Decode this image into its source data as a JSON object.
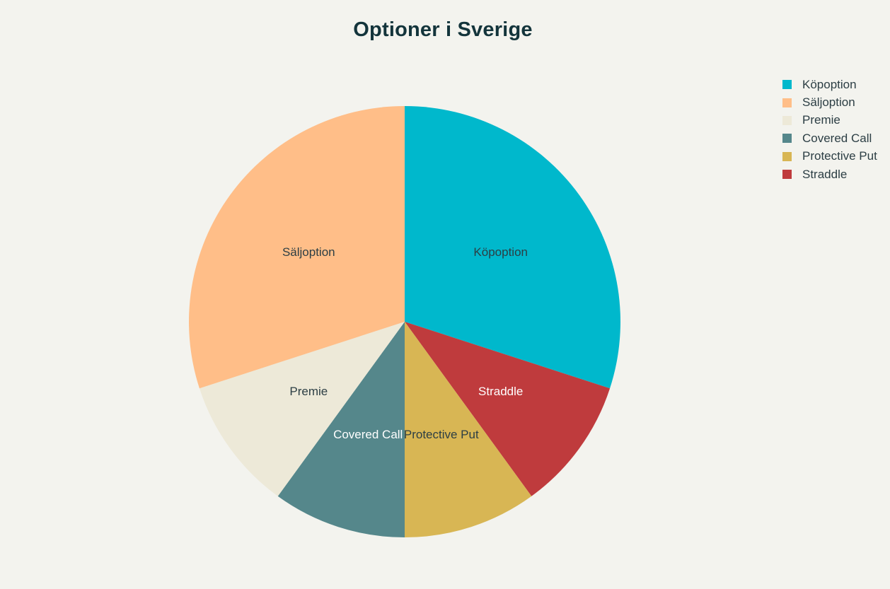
{
  "chart_data": {
    "type": "pie",
    "title": "Optioner i Sverige",
    "legend_position": "top-right",
    "slices": [
      {
        "label": "Köpoption",
        "value": 30,
        "color": "#00b8cc",
        "text_color": "#2c3e44"
      },
      {
        "label": "Straddle",
        "value": 10,
        "color": "#bf3b3d",
        "text_color": "#ffffff"
      },
      {
        "label": "Protective Put",
        "value": 10,
        "color": "#d8b654",
        "text_color": "#2c3e44"
      },
      {
        "label": "Covered Call",
        "value": 10,
        "color": "#55878b",
        "text_color": "#ffffff"
      },
      {
        "label": "Premie",
        "value": 10,
        "color": "#ede9d8",
        "text_color": "#2c3e44"
      },
      {
        "label": "Säljoption",
        "value": 30,
        "color": "#ffbe88",
        "text_color": "#2c3e44"
      }
    ],
    "legend": [
      {
        "label": "Köpoption",
        "color": "#00b8cc"
      },
      {
        "label": "Säljoption",
        "color": "#ffbe88"
      },
      {
        "label": "Premie",
        "color": "#ede9d8"
      },
      {
        "label": "Covered Call",
        "color": "#55878b"
      },
      {
        "label": "Protective Put",
        "color": "#d8b654"
      },
      {
        "label": "Straddle",
        "color": "#bf3b3d"
      }
    ]
  }
}
